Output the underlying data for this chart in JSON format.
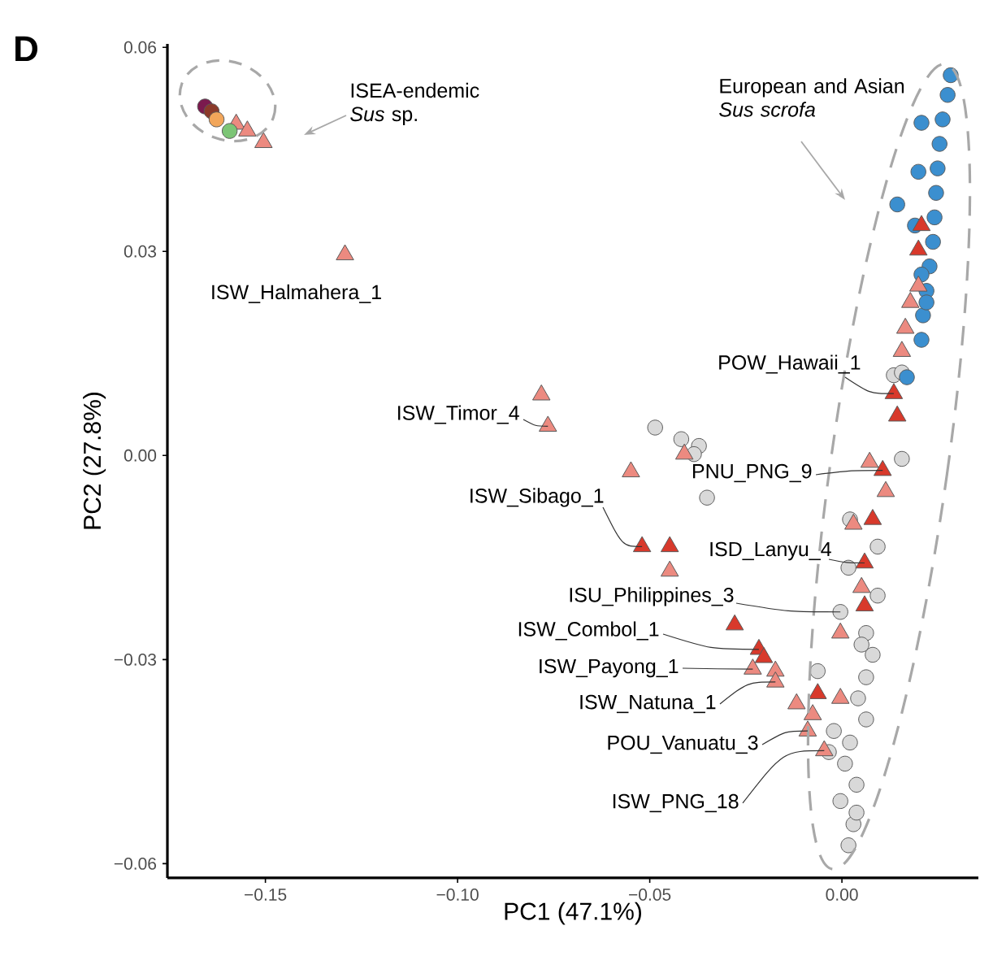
{
  "chart_data": {
    "type": "scatter",
    "xlabel": "PC1 (47.1%)",
    "ylabel": "PC2 (27.8%)",
    "xlim": [
      -0.1755,
      0.0355
    ],
    "ylim": [
      -0.0621,
      0.0605
    ],
    "xticks": [
      {
        "value": -0.15,
        "label": "−0.15"
      },
      {
        "value": -0.1,
        "label": "−0.10"
      },
      {
        "value": -0.05,
        "label": "−0.05"
      },
      {
        "value": 0,
        "label": "0.00"
      }
    ],
    "yticks": [
      {
        "value": -0.06,
        "label": "−0.06"
      },
      {
        "value": -0.03,
        "label": "−0.03"
      },
      {
        "value": 0,
        "label": "0.00"
      },
      {
        "value": 0.03,
        "label": "0.03"
      },
      {
        "value": 0.06,
        "label": "0.06"
      }
    ],
    "series": [
      {
        "color": "#d9d9d9",
        "marker": "circle",
        "x": [
          -0.0486,
          -0.0418,
          -0.0372,
          -0.0385,
          -0.0351,
          0.0135,
          0.0156,
          0.0021,
          0.0093,
          0.0017,
          0.0093,
          -0.0004,
          0.0063,
          0.008,
          0.0063,
          0.0042,
          -0.0063,
          0.0063,
          0.0021,
          -0.0021,
          0.0008,
          0.0038,
          -0.0004,
          0.003,
          0.0017,
          0.0038,
          0.0051,
          -0.0034,
          0.0156
        ],
        "values": [
          0.0041,
          0.0024,
          0.0014,
          0.0002,
          -0.0062,
          0.0118,
          -0.0005,
          -0.0094,
          -0.0134,
          -0.0165,
          -0.0206,
          -0.023,
          -0.0261,
          -0.0293,
          -0.0326,
          -0.0357,
          -0.0317,
          -0.0388,
          -0.0422,
          -0.0405,
          -0.0453,
          -0.0484,
          -0.0508,
          -0.0542,
          -0.0573,
          -0.0525,
          -0.0278,
          -0.0436,
          0.0122
        ]
      },
      {
        "color": "#3b8fcf",
        "marker": "circle",
        "x": [
          0.0283,
          0.0275,
          0.0262,
          0.0254,
          0.0249,
          0.0245,
          0.0241,
          0.0237,
          0.0228,
          0.022,
          0.0211,
          0.0207,
          0.0207,
          0.0199,
          0.0144,
          0.019,
          0.0207,
          0.022,
          0.0169
        ],
        "values": [
          0.0559,
          0.053,
          0.0494,
          0.0458,
          0.0422,
          0.0386,
          0.035,
          0.0314,
          0.0278,
          0.0242,
          0.0206,
          0.017,
          0.0489,
          0.0417,
          0.0369,
          0.0338,
          0.0266,
          0.0225,
          0.0115
        ]
      },
      {
        "color": "#ec8a80",
        "marker": "triangle",
        "x": [
          -0.1576,
          -0.1547,
          -0.1505,
          -0.1293,
          -0.0782,
          -0.0765,
          -0.0549,
          -0.041,
          -0.0448,
          -0.0232,
          -0.0173,
          -0.0173,
          -0.0118,
          0.0072,
          0.0114,
          0.003,
          0.0051,
          -0.0004,
          -0.0004,
          -0.0076,
          -0.0089,
          -0.0046,
          0.0199,
          0.0178,
          0.0165,
          0.0156
        ],
        "values": [
          0.0487,
          0.0477,
          0.046,
          0.0295,
          0.0089,
          0.0043,
          -0.0024,
          0.0002,
          -0.017,
          -0.0314,
          -0.0317,
          -0.0333,
          -0.0365,
          -0.001,
          -0.0053,
          -0.0101,
          -0.0194,
          -0.0261,
          -0.0357,
          -0.0381,
          -0.0405,
          -0.0434,
          0.0249,
          0.0225,
          0.0187,
          0.0153
        ]
      },
      {
        "color": "#d8392b",
        "marker": "triangle",
        "x": [
          -0.052,
          -0.0448,
          -0.0279,
          -0.0216,
          -0.0203,
          0.0135,
          0.0144,
          0.0106,
          0.008,
          0.0059,
          -0.0063,
          0.0207,
          0.0199,
          0.0059
        ],
        "values": [
          -0.0134,
          -0.0134,
          -0.0249,
          -0.0285,
          -0.0297,
          0.0091,
          0.0058,
          -0.0022,
          -0.0094,
          -0.0158,
          -0.035,
          0.0338,
          0.0302,
          -0.0221
        ]
      },
      {
        "color": "#7b1a4e",
        "marker": "circle",
        "x": [
          -0.1657
        ],
        "values": [
          0.0513
        ]
      },
      {
        "color": "#8b3a2a",
        "marker": "circle",
        "x": [
          -0.164
        ],
        "values": [
          0.0506
        ]
      },
      {
        "color": "#f2a65a",
        "marker": "circle",
        "x": [
          -0.1627
        ],
        "values": [
          0.0494
        ]
      },
      {
        "color": "#7cc576",
        "marker": "circle",
        "x": [
          -0.1593
        ],
        "values": [
          0.0477
        ]
      }
    ],
    "annotations": [
      "D",
      "ISEA-endemic *Sus* sp.",
      "European and Asian *Sus scrofa*",
      {
        "text": "ISW_Halmahera_1",
        "x": -0.1293,
        "y": 0.0295
      },
      {
        "text": "ISW_Timor_4",
        "x": -0.0765,
        "y": 0.0043
      },
      {
        "text": "ISW_Sibago_1",
        "x": -0.052,
        "y": -0.0134
      },
      {
        "text": "POW_Hawaii_1",
        "x": 0.0135,
        "y": 0.0091
      },
      {
        "text": "PNU_PNG_9",
        "x": 0.0106,
        "y": -0.0022
      },
      {
        "text": "ISD_Lanyu_4",
        "x": 0.0059,
        "y": -0.0158
      },
      {
        "text": "ISU_Philippines_3",
        "x": -0.0004,
        "y": -0.023
      },
      {
        "text": "ISW_Combol_1",
        "x": -0.0216,
        "y": -0.0285
      },
      {
        "text": "ISW_Payong_1",
        "x": -0.0232,
        "y": -0.0314
      },
      {
        "text": "ISW_Natuna_1",
        "x": -0.0173,
        "y": -0.0333
      },
      {
        "text": "POU_Vanuatu_3",
        "x": -0.0089,
        "y": -0.0405
      },
      {
        "text": "ISW_PNG_18",
        "x": -0.0046,
        "y": -0.0434
      }
    ]
  }
}
